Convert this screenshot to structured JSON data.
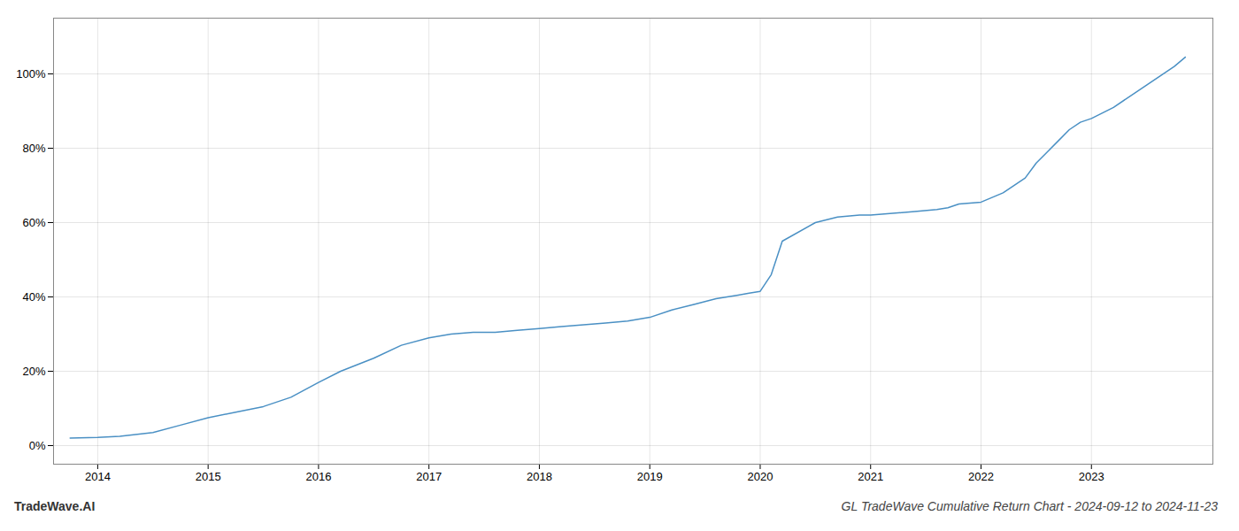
{
  "chart_data": {
    "type": "line",
    "title": "GL TradeWave Cumulative Return Chart - 2024-09-12 to 2024-11-23",
    "annotations": [
      "TradeWave.AI"
    ],
    "x": [
      2013.75,
      2014.0,
      2014.2,
      2014.5,
      2014.75,
      2015.0,
      2015.25,
      2015.5,
      2015.75,
      2016.0,
      2016.2,
      2016.5,
      2016.75,
      2017.0,
      2017.2,
      2017.4,
      2017.6,
      2017.8,
      2018.0,
      2018.2,
      2018.4,
      2018.6,
      2018.8,
      2019.0,
      2019.2,
      2019.4,
      2019.6,
      2019.8,
      2019.9,
      2020.0,
      2020.1,
      2020.2,
      2020.5,
      2020.7,
      2020.9,
      2021.0,
      2021.2,
      2021.4,
      2021.6,
      2021.7,
      2021.8,
      2022.0,
      2022.2,
      2022.4,
      2022.5,
      2022.6,
      2022.7,
      2022.8,
      2022.9,
      2023.0,
      2023.2,
      2023.5,
      2023.75,
      2023.85
    ],
    "values": [
      2.0,
      2.2,
      2.5,
      3.5,
      5.5,
      7.5,
      9.0,
      10.5,
      13.0,
      17.0,
      20.0,
      23.5,
      27.0,
      29.0,
      30.0,
      30.5,
      30.5,
      31.0,
      31.5,
      32.0,
      32.5,
      33.0,
      33.5,
      34.5,
      36.5,
      38.0,
      39.5,
      40.5,
      41.0,
      41.5,
      46.0,
      55.0,
      60.0,
      61.5,
      62.0,
      62.0,
      62.5,
      63.0,
      63.5,
      64.0,
      65.0,
      65.5,
      68.0,
      72.0,
      76.0,
      79.0,
      82.0,
      85.0,
      87.0,
      88.0,
      91.0,
      97.0,
      102.0,
      104.5
    ],
    "color": "#4a90c4",
    "xlim": [
      2013.6,
      2024.1
    ],
    "xticks": [
      2014,
      2015,
      2016,
      2017,
      2018,
      2019,
      2020,
      2021,
      2022,
      2023
    ],
    "ylim": [
      -5,
      115
    ],
    "yticks": [
      {
        "value": 0,
        "label": "0%"
      },
      {
        "value": 20,
        "label": "20%"
      },
      {
        "value": 40,
        "label": "40%"
      },
      {
        "value": 60,
        "label": "60%"
      },
      {
        "value": 80,
        "label": "80%"
      },
      {
        "value": 100,
        "label": "100%"
      }
    ],
    "grid": true
  }
}
